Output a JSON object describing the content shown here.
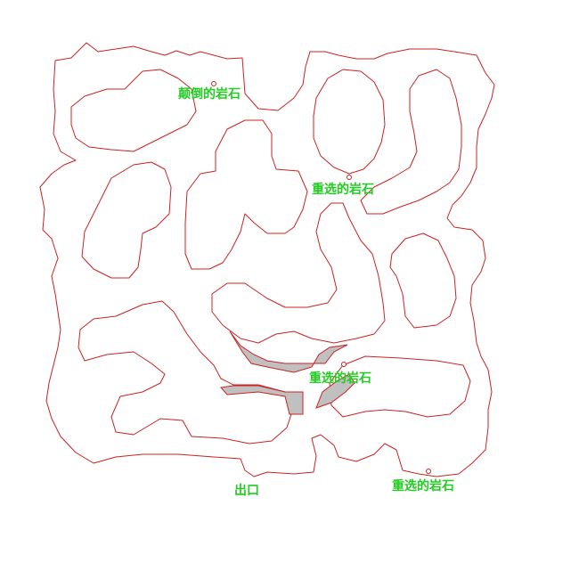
{
  "colors": {
    "wall": "#cc2222",
    "label": "#22cc22",
    "blocked_area": "#c0c0c0",
    "background": "#ffffff"
  },
  "labels": {
    "rock_topple": "颠倒的岩石",
    "rock_select_1": "重选的岩石",
    "rock_select_2": "重选的岩石",
    "rock_select_3": "重选的岩石",
    "exit": "出口"
  }
}
